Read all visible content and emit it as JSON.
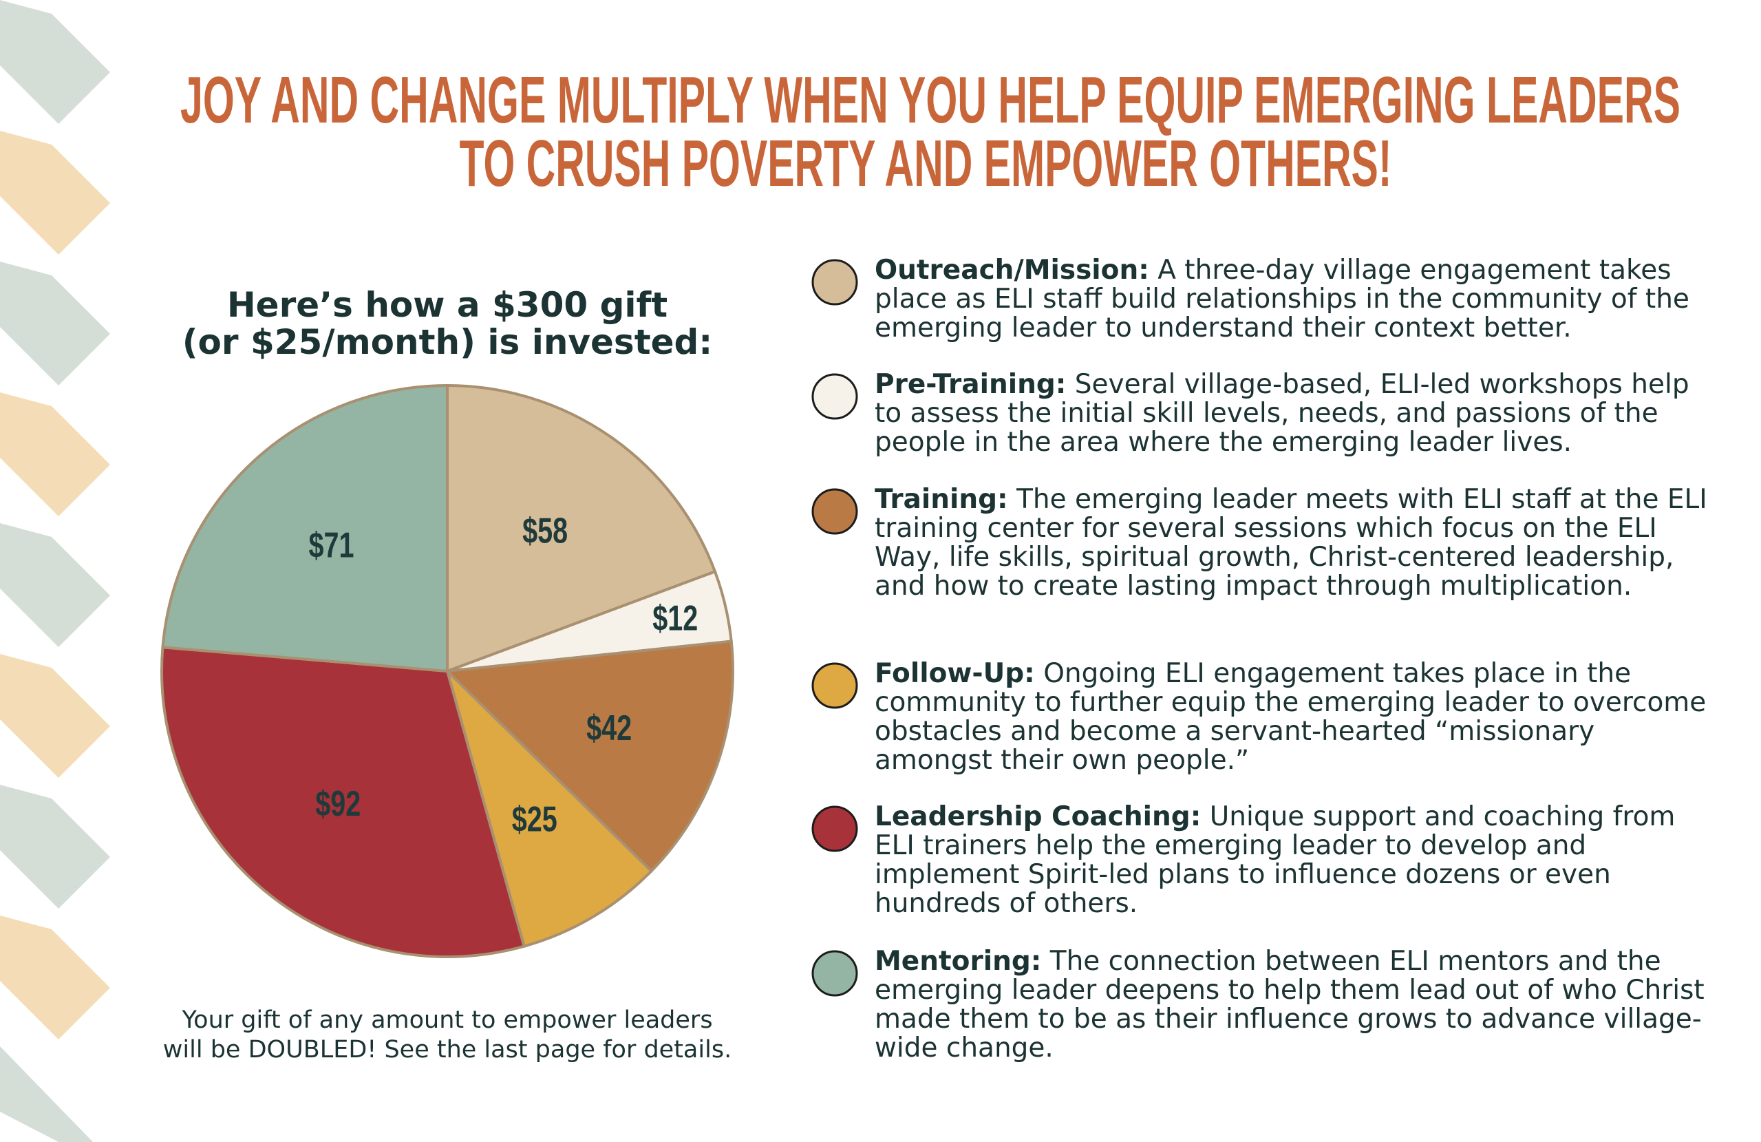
{
  "title_lines": [
    "JOY AND CHANGE MULTIPLY WHEN YOU HELP EQUIP EMERGING LEADERS",
    "TO CRUSH POVERTY AND EMPOWER OTHERS!"
  ],
  "chart_data": {
    "type": "pie",
    "title_lines": [
      "Here’s how a $300 gift",
      "(or $25/month) is invested:"
    ],
    "categories": [
      "Outreach/Mission:",
      "Pre-Training:",
      "Training:",
      "Follow-Up:",
      "Leadership Coaching:",
      "Mentoring:"
    ],
    "values": [
      58,
      12,
      42,
      25,
      92,
      71
    ],
    "value_labels": [
      "$58",
      "$12",
      "$42",
      "$25",
      "$92",
      "$71"
    ],
    "colors": [
      "#d6bd9a",
      "#f6f2ea",
      "#b97a45",
      "#dea843",
      "#a8323a",
      "#94b4a4"
    ],
    "descriptions": [
      "A three-day village engagement takes place as ELI staff build relationships in the community of the emerging leader to understand their context better.",
      "Several village-based, ELI-led workshops help to assess the initial skill levels, needs, and passions of the people in the area where the emerging leader lives.",
      "The emerging leader meets with ELI staff at the ELI training center for several sessions which focus on the ELI Way, life skills, spiritual growth, Christ-centered leadership, and how to create lasting impact through multiplication.",
      "Ongoing ELI engagement takes place in the community to further equip the emerging leader to overcome obstacles and become a servant-hearted “missionary amongst their own people.”",
      "Unique support and coaching from ELI trainers help the emerging leader to develop and implement Spirit-led plans to influence dozens or even hundreds of others.",
      "The connection between ELI mentors and the emerging leader deepens to help them lead out of who Christ made them to be as their influence grows to advance village-wide change."
    ]
  },
  "footnote_lines": [
    "Your gift of any amount to empower leaders",
    "will be DOUBLED! See the last page for details."
  ]
}
